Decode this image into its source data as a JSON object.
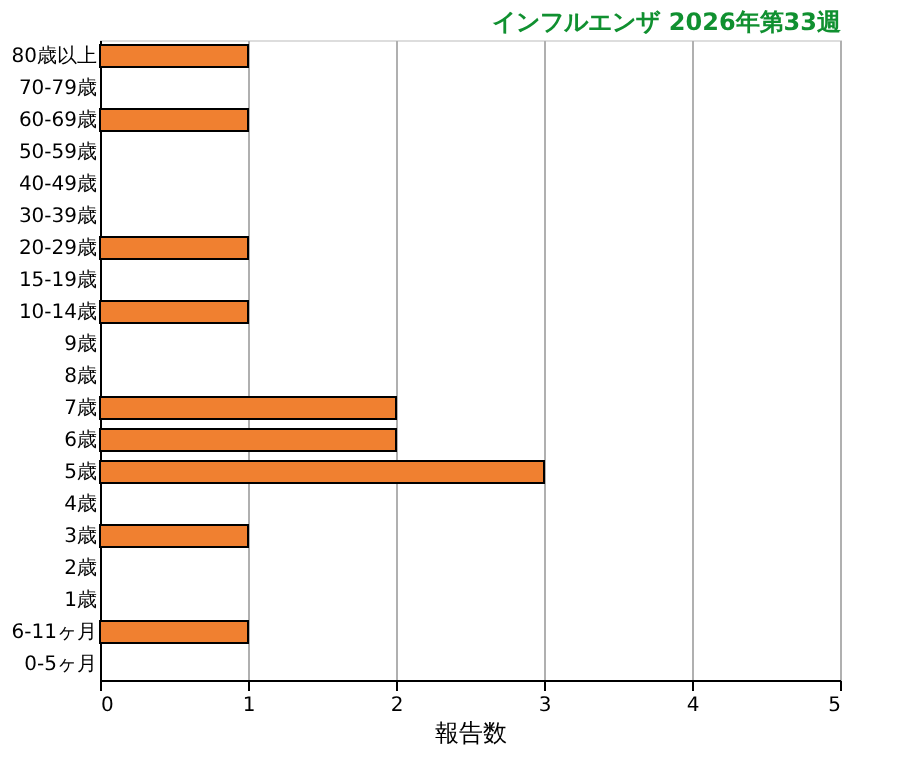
{
  "chart_data": {
    "type": "bar",
    "orientation": "horizontal",
    "title": "インフルエンザ 2026年第33週",
    "xlabel": "報告数",
    "categories": [
      "80歳以上",
      "70-79歳",
      "60-69歳",
      "50-59歳",
      "40-49歳",
      "30-39歳",
      "20-29歳",
      "15-19歳",
      "10-14歳",
      "9歳",
      "8歳",
      "7歳",
      "6歳",
      "5歳",
      "4歳",
      "3歳",
      "2歳",
      "1歳",
      "6-11ヶ月",
      "0-5ヶ月"
    ],
    "values": [
      1,
      0,
      1,
      0,
      0,
      0,
      1,
      0,
      1,
      0,
      0,
      2,
      2,
      3,
      0,
      1,
      0,
      0,
      1,
      0
    ],
    "color": "#f08030",
    "xlim": [
      0,
      5
    ],
    "xticks": [
      0,
      1,
      2,
      3,
      4,
      5
    ],
    "grid": "x"
  }
}
